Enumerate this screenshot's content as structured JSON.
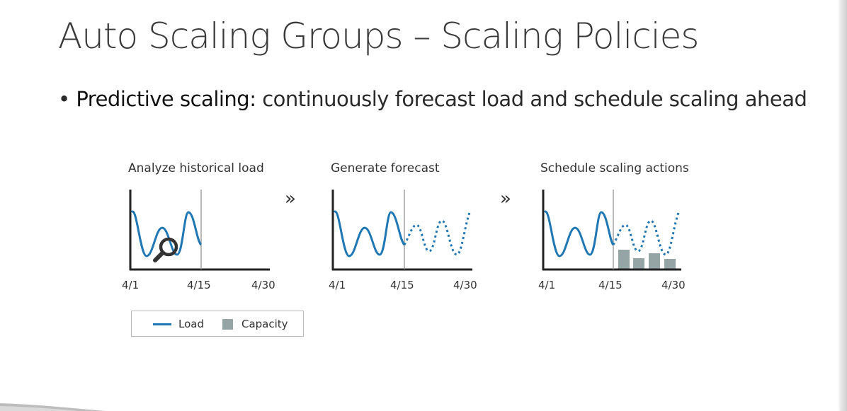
{
  "slide": {
    "title": "Auto Scaling Groups – Scaling Policies",
    "bullet_term": "Predictive scaling:",
    "bullet_text": " continuously forecast load and schedule scaling ahead"
  },
  "panels": [
    {
      "title": "Analyze historical load",
      "ticks": [
        "4/1",
        "4/15",
        "4/30"
      ]
    },
    {
      "title": "Generate forecast",
      "ticks": [
        "4/1",
        "4/15",
        "4/30"
      ]
    },
    {
      "title": "Schedule scaling actions",
      "ticks": [
        "4/1",
        "4/15",
        "4/30"
      ]
    }
  ],
  "arrows": [
    "»",
    "»"
  ],
  "legend": {
    "load": "Load",
    "capacity": "Capacity"
  },
  "colors": {
    "load": "#1f77b4",
    "capacity": "#95a5a6",
    "axis": "#222222",
    "divider": "#8a8a8a"
  },
  "icons": {
    "magnifier": "magnifier-icon"
  }
}
